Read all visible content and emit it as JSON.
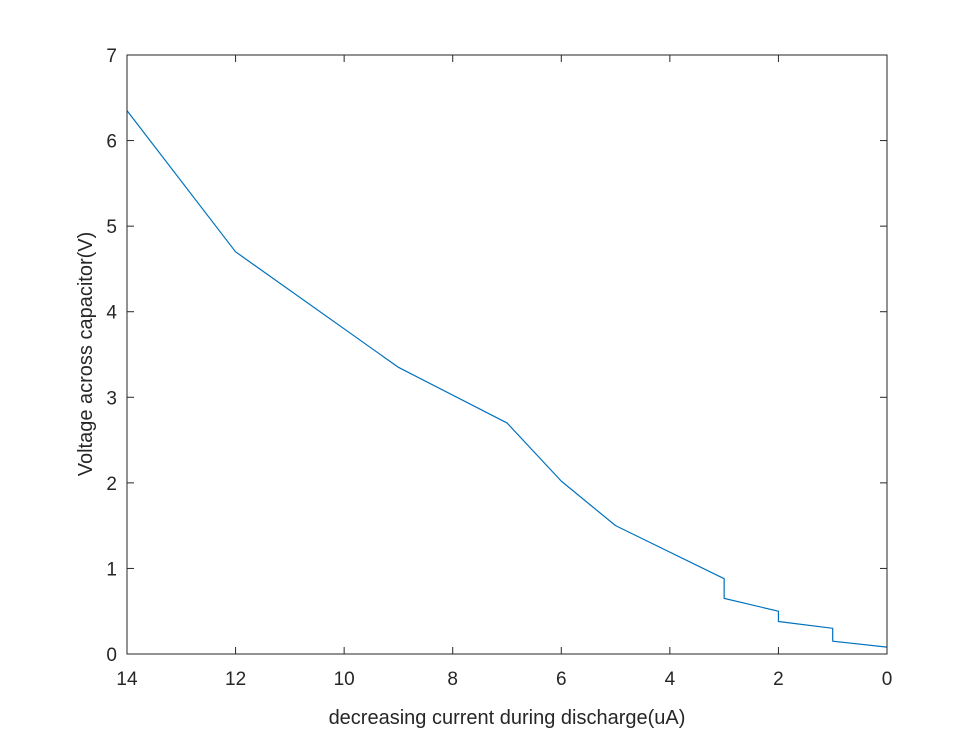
{
  "chart_data": {
    "type": "line",
    "title": "",
    "xlabel": "decreasing current during discharge(uA)",
    "ylabel": "Voltage across capacitor(V)",
    "xlim": [
      14,
      0
    ],
    "ylim": [
      0,
      7
    ],
    "x_reversed": true,
    "xticks": [
      14,
      12,
      10,
      8,
      6,
      4,
      2,
      0
    ],
    "yticks": [
      0,
      1,
      2,
      3,
      4,
      5,
      6,
      7
    ],
    "grid": false,
    "box": true,
    "colors": {
      "line": "#0072BD",
      "axes": "#262626",
      "background": "#ffffff"
    },
    "series": [
      {
        "x": [
          14,
          12,
          9,
          7,
          6,
          5,
          3,
          3,
          2,
          2,
          1,
          1,
          0
        ],
        "y": [
          6.35,
          4.7,
          3.35,
          2.7,
          2.02,
          1.5,
          0.88,
          0.65,
          0.5,
          0.38,
          0.3,
          0.15,
          0.08
        ]
      }
    ]
  }
}
